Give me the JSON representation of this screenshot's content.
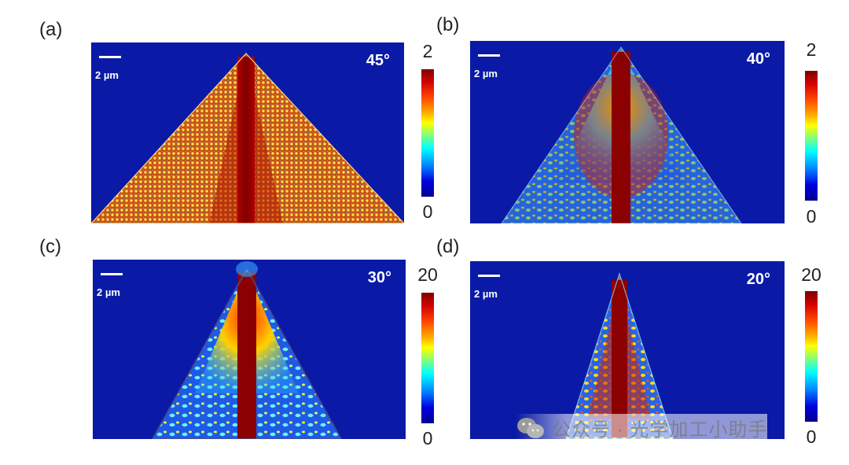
{
  "panels": [
    {
      "id": "a",
      "label": "(a)",
      "angle": "45°",
      "scale": "2 µm",
      "cb_max": "2",
      "cb_min": "0"
    },
    {
      "id": "b",
      "label": "(b)",
      "angle": "40°",
      "scale": "2 µm",
      "cb_max": "2",
      "cb_min": "0"
    },
    {
      "id": "c",
      "label": "(c)",
      "angle": "30°",
      "scale": "2 µm",
      "cb_max": "20",
      "cb_min": "0"
    },
    {
      "id": "d",
      "label": "(d)",
      "angle": "20°",
      "scale": "2 µm",
      "cb_max": "20",
      "cb_min": "0"
    }
  ],
  "colormap": [
    "#00008f",
    "#0000e0",
    "#0080ff",
    "#00ffff",
    "#7fff7f",
    "#ffff00",
    "#ffb300",
    "#ff4500",
    "#d40000",
    "#7f0000"
  ],
  "background_color": "#0a1aa6",
  "watermark": {
    "text": "公众号 · 光学加工小助手",
    "icon": "wechat-icon"
  }
}
